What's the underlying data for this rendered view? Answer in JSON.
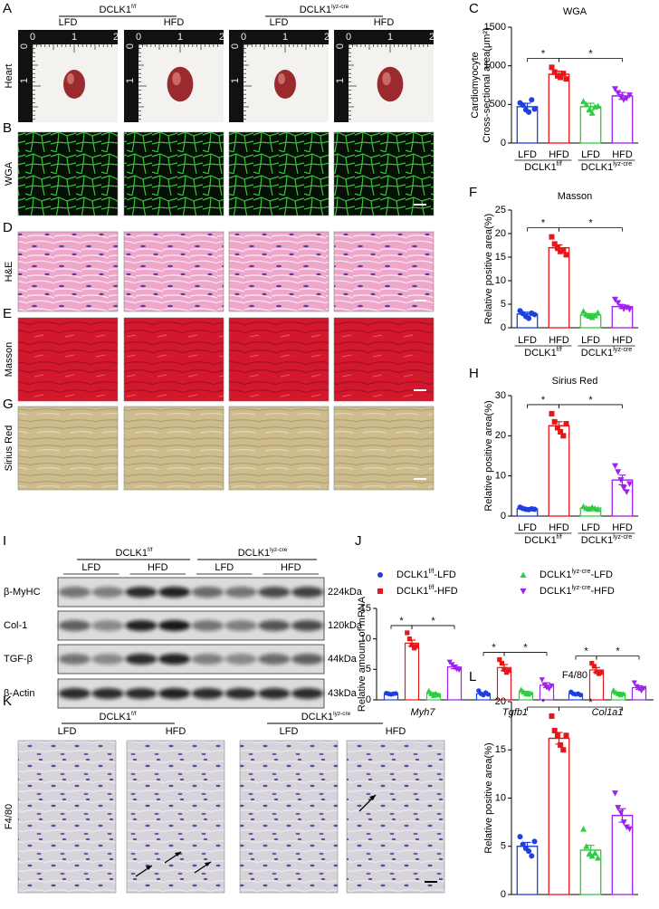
{
  "panel_letters": [
    "A",
    "B",
    "C",
    "D",
    "E",
    "F",
    "G",
    "H",
    "I",
    "J",
    "K",
    "L"
  ],
  "histology": {
    "genotypes": [
      {
        "base": "DCLK1",
        "sup": "f/f"
      },
      {
        "base": "DCLK1",
        "sup": "lyz-cre"
      }
    ],
    "diets": [
      "LFD",
      "HFD",
      "LFD",
      "HFD"
    ],
    "rows": [
      "Heart",
      "WGA",
      "H&E",
      "Masson",
      "Sirius Red"
    ],
    "ruler_labels": [
      "0",
      "1",
      "2"
    ]
  },
  "western_blot": {
    "genotypes": [
      {
        "base": "DCLK1",
        "sup": "f/f"
      },
      {
        "base": "DCLK1",
        "sup": "lyz-cre"
      }
    ],
    "diets": [
      "LFD",
      "HFD",
      "LFD",
      "HFD"
    ],
    "proteins": [
      "β-MyHC",
      "Col-1",
      "TGF-β",
      "β-Actin"
    ],
    "sizes": [
      "224kDa",
      "120kDa",
      "44kDa",
      "43kDa"
    ]
  },
  "f480_staining": {
    "genotypes": [
      {
        "base": "DCLK1",
        "sup": "f/f"
      },
      {
        "base": "DCLK1",
        "sup": "lyz-cre"
      }
    ],
    "diets": [
      "LFD",
      "HFD",
      "LFD",
      "HFD"
    ],
    "row_label": "F4/80"
  },
  "chart_data": [
    {
      "type": "bar",
      "title": "WGA",
      "y_label": [
        "Cardiomyocyte",
        "Cross-sectional area(μm²)"
      ],
      "categories": [
        "LFD",
        "HFD",
        "LFD",
        "HFD"
      ],
      "groups": [
        {
          "base": "DCLK1",
          "sup": "f/f"
        },
        {
          "base": "DCLK1",
          "sup": "lyz-cre"
        }
      ],
      "values": [
        470,
        890,
        470,
        610
      ],
      "errors": [
        45,
        40,
        45,
        45
      ],
      "points": [
        [
          520,
          490,
          430,
          400,
          560,
          440
        ],
        [
          980,
          920,
          870,
          850,
          900,
          830
        ],
        [
          540,
          500,
          430,
          390,
          470,
          480
        ],
        [
          700,
          650,
          600,
          560,
          580,
          620
        ]
      ],
      "colors": [
        "#1f3fe0",
        "#e8151b",
        "#2ecc40",
        "#a020f0"
      ],
      "markers": [
        "circle",
        "square",
        "triangle",
        "triangle-down"
      ],
      "ylim": [
        0,
        1500
      ],
      "yticks": [
        0,
        500,
        1000,
        1500
      ],
      "annotations": [
        "*",
        "*"
      ]
    },
    {
      "type": "bar",
      "title": "Masson",
      "y_label": "Relative positive area(%)",
      "categories": [
        "LFD",
        "HFD",
        "LFD",
        "HFD"
      ],
      "groups": [
        {
          "base": "DCLK1",
          "sup": "f/f"
        },
        {
          "base": "DCLK1",
          "sup": "lyz-cre"
        }
      ],
      "values": [
        2.9,
        17,
        2.7,
        4.5
      ],
      "errors": [
        0.4,
        0.6,
        0.3,
        0.4
      ],
      "points": [
        [
          3.6,
          3,
          2.4,
          2,
          3.1,
          2.8
        ],
        [
          19.3,
          17.8,
          17,
          16.2,
          16.5,
          15.5
        ],
        [
          3.5,
          2.8,
          2.5,
          2.2,
          2.6,
          3.2
        ],
        [
          6,
          5.3,
          4.5,
          4,
          4.3,
          3.9
        ]
      ],
      "colors": [
        "#1f3fe0",
        "#e8151b",
        "#2ecc40",
        "#a020f0"
      ],
      "markers": [
        "circle",
        "square",
        "triangle",
        "triangle-down"
      ],
      "ylim": [
        0,
        25
      ],
      "yticks": [
        0,
        5,
        10,
        15,
        20,
        25
      ],
      "annotations": [
        "*",
        "*"
      ]
    },
    {
      "type": "bar",
      "title": "Sirius Red",
      "y_label": "Relative positive area(%)",
      "categories": [
        "LFD",
        "HFD",
        "LFD",
        "HFD"
      ],
      "groups": [
        {
          "base": "DCLK1",
          "sup": "f/f"
        },
        {
          "base": "DCLK1",
          "sup": "lyz-cre"
        }
      ],
      "values": [
        1.8,
        22.5,
        2,
        9
      ],
      "errors": [
        0.2,
        1,
        0.2,
        1.2
      ],
      "points": [
        [
          2.2,
          1.9,
          1.7,
          1.6,
          1.8,
          1.7
        ],
        [
          25.5,
          23.5,
          22,
          21,
          20,
          23
        ],
        [
          2.4,
          2,
          1.8,
          2.2,
          1.9,
          1.7
        ],
        [
          12.5,
          11,
          9,
          7,
          6,
          8
        ]
      ],
      "colors": [
        "#1f3fe0",
        "#e8151b",
        "#2ecc40",
        "#a020f0"
      ],
      "markers": [
        "circle",
        "square",
        "triangle",
        "triangle-down"
      ],
      "ylim": [
        0,
        30
      ],
      "yticks": [
        0,
        10,
        20,
        30
      ],
      "annotations": [
        "*",
        "*"
      ]
    },
    {
      "type": "grouped-bar",
      "y_label": "Relative amount of mRNA",
      "categories": [
        "Myh7",
        "Tgfb1",
        "Col1a1"
      ],
      "series": [
        {
          "name": {
            "base": "DCLK1",
            "sup": "f/f",
            "suffix": "-LFD"
          },
          "color": "#1f3fe0",
          "marker": "circle",
          "values": [
            1,
            1,
            1
          ],
          "errors": [
            0.1,
            0.15,
            0.1
          ],
          "points": [
            [
              1.1,
              1,
              0.9,
              1,
              1.05
            ],
            [
              1.5,
              1,
              0.8,
              1.2,
              0.9
            ],
            [
              1.3,
              1,
              0.9,
              1,
              0.8
            ]
          ]
        },
        {
          "name": {
            "base": "DCLK1",
            "sup": "f/f",
            "suffix": "-HFD"
          },
          "color": "#e8151b",
          "marker": "square",
          "values": [
            9.3,
            5.3,
            4.9
          ],
          "errors": [
            0.5,
            0.5,
            0.4
          ],
          "points": [
            [
              11,
              10,
              9,
              8.5,
              8.8
            ],
            [
              6.6,
              6,
              5,
              4.5,
              4.8
            ],
            [
              6,
              5.5,
              4.6,
              4.3,
              4.5
            ]
          ]
        },
        {
          "name": {
            "base": "DCLK1",
            "sup": "lyz-cre",
            "suffix": "-LFD"
          },
          "color": "#2ecc40",
          "marker": "triangle",
          "values": [
            1,
            1.2,
            1.1
          ],
          "errors": [
            0.2,
            0.2,
            0.15
          ],
          "points": [
            [
              1.5,
              1,
              0.7,
              1,
              0.8
            ],
            [
              1.7,
              1.3,
              1,
              0.9,
              1.1
            ],
            [
              1.6,
              1.2,
              1,
              0.8,
              1
            ]
          ]
        },
        {
          "name": {
            "base": "DCLK1",
            "sup": "lyz-cre",
            "suffix": "-HFD"
          },
          "color": "#a020f0",
          "marker": "triangle-down",
          "values": [
            5.4,
            2.4,
            2
          ],
          "errors": [
            0.3,
            0.4,
            0.3
          ],
          "points": [
            [
              6.2,
              5.8,
              5.3,
              5,
              4.9
            ],
            [
              3.3,
              2.5,
              2,
              1.8,
              2.3
            ],
            [
              2.8,
              2.2,
              1.8,
              1.5,
              1.9
            ]
          ]
        }
      ],
      "ylim": [
        0,
        15
      ],
      "yticks": [
        0,
        5,
        10,
        15
      ],
      "annotations": [
        "*",
        "*",
        "*",
        "*",
        "*",
        "*"
      ]
    },
    {
      "type": "bar",
      "title": "F4/80",
      "y_label": "Relative positive area(%)",
      "categories": [
        null,
        null,
        null,
        null
      ],
      "values": [
        5,
        16.2,
        4.6,
        8.2
      ],
      "errors": [
        0.4,
        0.6,
        0.5,
        0.7
      ],
      "points": [
        [
          6,
          5.2,
          4.8,
          4.5,
          4,
          5.5
        ],
        [
          18.5,
          17,
          16.5,
          15.5,
          15,
          16.5
        ],
        [
          6.8,
          5,
          4.2,
          4,
          4.3,
          3.8
        ],
        [
          10.5,
          9,
          8.5,
          7.5,
          7,
          6.8
        ]
      ],
      "colors": [
        "#1f3fe0",
        "#e8151b",
        "#2ecc40",
        "#a020f0"
      ],
      "markers": [
        "circle",
        "square",
        "triangle",
        "triangle-down"
      ],
      "ylim": [
        0,
        20
      ],
      "yticks": [
        0,
        5,
        10,
        15,
        20
      ],
      "annotations": [
        "*",
        "*"
      ]
    }
  ]
}
